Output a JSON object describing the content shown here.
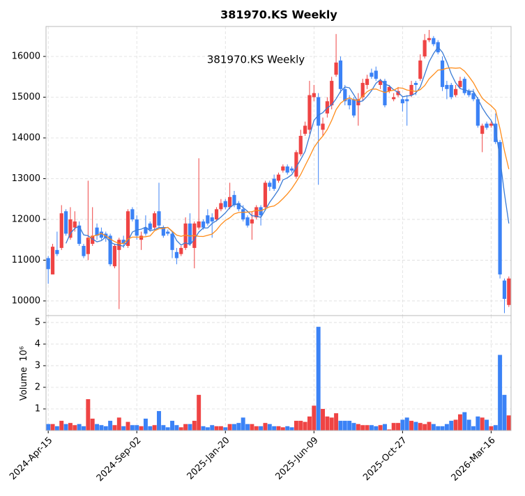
{
  "chart_data": {
    "type": "candlestick",
    "title": "381970.KS  Weekly",
    "annotation": "381970.KS  Weekly",
    "volume_label": "Volume",
    "volume_scale_label": "10⁶",
    "categories": [
      "2024-Apr-15",
      null,
      null,
      null,
      null,
      null,
      null,
      null,
      null,
      null,
      null,
      null,
      null,
      null,
      null,
      null,
      null,
      null,
      null,
      null,
      "2024-Sep-02",
      null,
      null,
      null,
      null,
      null,
      null,
      null,
      null,
      null,
      null,
      null,
      null,
      null,
      null,
      null,
      null,
      null,
      null,
      null,
      "2025-Jan-20",
      null,
      null,
      null,
      null,
      null,
      null,
      null,
      null,
      null,
      null,
      null,
      null,
      null,
      null,
      null,
      null,
      null,
      null,
      null,
      "2025-Jun-09",
      null,
      null,
      null,
      null,
      null,
      null,
      null,
      null,
      null,
      null,
      null,
      null,
      null,
      null,
      null,
      null,
      null,
      null,
      null,
      "2025-Oct-27",
      null,
      null,
      null,
      null,
      null,
      null,
      null,
      null,
      null,
      null,
      null,
      null,
      null,
      null,
      null,
      null,
      null,
      null,
      null,
      "2026-Mar-16",
      null,
      null,
      null,
      null
    ],
    "open": [
      11050,
      10650,
      11250,
      11300,
      12200,
      11550,
      11800,
      11850,
      11350,
      11150,
      11400,
      11800,
      11700,
      11650,
      11600,
      10850,
      11250,
      11500,
      11350,
      12250,
      12000,
      11500,
      11800,
      11900,
      11800,
      12200,
      11800,
      11700,
      11650,
      11200,
      11150,
      11300,
      11900,
      11300,
      11800,
      11950,
      12100,
      12050,
      12000,
      12250,
      12450,
      12300,
      12600,
      12400,
      12250,
      12050,
      11900,
      12050,
      12300,
      12300,
      12900,
      13000,
      12950,
      13200,
      13300,
      13250,
      13050,
      13600,
      14100,
      14200,
      15000,
      15000,
      14200,
      14600,
      14800,
      15550,
      15900,
      15200,
      14950,
      14950,
      14800,
      15000,
      15300,
      15600,
      15650,
      15300,
      15400,
      15150,
      14950,
      15050,
      14950,
      14950,
      15050,
      15350,
      15450,
      16000,
      16400,
      16450,
      16350,
      15900,
      15300,
      15300,
      15050,
      15250,
      15450,
      15150,
      15100,
      14950,
      14100,
      14350,
      14300,
      14350,
      13900,
      10500,
      9900
    ],
    "high": [
      11100,
      11400,
      11700,
      12350,
      12250,
      12300,
      12200,
      11950,
      11400,
      12950,
      12300,
      11900,
      11800,
      11700,
      11650,
      11400,
      11550,
      11600,
      12250,
      12300,
      12100,
      11700,
      12100,
      11950,
      12200,
      12900,
      11850,
      11750,
      11700,
      11300,
      11350,
      12050,
      12150,
      11950,
      13500,
      12000,
      12250,
      12150,
      12300,
      12500,
      12500,
      12900,
      12700,
      12450,
      12350,
      12100,
      12200,
      12350,
      12350,
      12950,
      12950,
      13100,
      13150,
      13350,
      13350,
      13300,
      13700,
      14200,
      14400,
      15400,
      15300,
      15100,
      14500,
      15000,
      15500,
      16550,
      16000,
      15300,
      15050,
      15000,
      15100,
      15450,
      15550,
      15700,
      15750,
      15450,
      15450,
      15300,
      15100,
      15250,
      15000,
      15050,
      15400,
      15400,
      16050,
      16550,
      16650,
      16500,
      16400,
      16000,
      15400,
      15350,
      15300,
      15500,
      15500,
      15200,
      15200,
      15000,
      14350,
      14400,
      14400,
      14600,
      13950,
      10550,
      10600
    ],
    "low": [
      10420,
      10650,
      11100,
      11250,
      11600,
      11500,
      11700,
      11350,
      11050,
      11000,
      11350,
      11500,
      11500,
      11450,
      10850,
      10800,
      9800,
      11300,
      11300,
      11950,
      11500,
      11250,
      11600,
      11700,
      11750,
      11800,
      11550,
      11600,
      11050,
      10900,
      11100,
      11250,
      11350,
      10800,
      11750,
      11750,
      11850,
      11550,
      11950,
      12200,
      12250,
      12250,
      12300,
      12200,
      11950,
      11800,
      11500,
      12000,
      11850,
      12250,
      12700,
      12700,
      12900,
      13150,
      13100,
      13150,
      13000,
      13550,
      14050,
      14100,
      14900,
      12850,
      14050,
      14500,
      14700,
      15500,
      15100,
      14800,
      14700,
      14500,
      14300,
      14900,
      15200,
      15450,
      15400,
      15200,
      14750,
      15100,
      14900,
      15000,
      14650,
      14300,
      15000,
      15050,
      15400,
      15950,
      16350,
      16250,
      16050,
      15150,
      14950,
      14950,
      15000,
      15200,
      15050,
      15000,
      14900,
      14250,
      13650,
      14200,
      14250,
      13850,
      10550,
      9700,
      9850
    ],
    "close": [
      10780,
      11330,
      11150,
      12150,
      11650,
      12000,
      11950,
      11400,
      11100,
      11550,
      11600,
      11600,
      11550,
      11550,
      10900,
      11350,
      11500,
      11400,
      12200,
      12000,
      11600,
      11600,
      11650,
      11750,
      12150,
      11850,
      11600,
      11650,
      11250,
      11050,
      11300,
      11900,
      11400,
      11900,
      11950,
      11800,
      11900,
      11950,
      12250,
      12400,
      12300,
      12550,
      12350,
      12250,
      12000,
      11850,
      12000,
      12300,
      12100,
      12900,
      12800,
      12750,
      13100,
      13300,
      13150,
      13200,
      13650,
      14050,
      14300,
      15050,
      15100,
      14300,
      14350,
      14900,
      15400,
      15850,
      15200,
      14900,
      14800,
      14550,
      14950,
      15350,
      15450,
      15500,
      15450,
      15400,
      14800,
      15250,
      15000,
      15150,
      14850,
      14900,
      15300,
      15300,
      15900,
      16400,
      16450,
      16300,
      16100,
      15250,
      15200,
      15000,
      15200,
      15400,
      15100,
      15050,
      14950,
      14300,
      14300,
      14250,
      14350,
      13900,
      10650,
      10050,
      10550
    ],
    "volume": [
      0.3,
      0.3,
      0.2,
      0.45,
      0.3,
      0.35,
      0.25,
      0.3,
      0.2,
      1.45,
      0.55,
      0.3,
      0.25,
      0.2,
      0.45,
      0.25,
      0.6,
      0.2,
      0.4,
      0.25,
      0.25,
      0.2,
      0.55,
      0.2,
      0.25,
      0.9,
      0.25,
      0.15,
      0.45,
      0.25,
      0.15,
      0.3,
      0.3,
      0.45,
      1.65,
      0.2,
      0.15,
      0.25,
      0.2,
      0.2,
      0.15,
      0.3,
      0.3,
      0.35,
      0.6,
      0.3,
      0.3,
      0.2,
      0.2,
      0.35,
      0.3,
      0.2,
      0.2,
      0.15,
      0.2,
      0.15,
      0.45,
      0.45,
      0.4,
      0.65,
      1.15,
      4.8,
      1.0,
      0.65,
      0.6,
      0.8,
      0.45,
      0.45,
      0.45,
      0.35,
      0.3,
      0.25,
      0.25,
      0.25,
      0.2,
      0.25,
      0.3,
      0.05,
      0.35,
      0.35,
      0.5,
      0.6,
      0.45,
      0.4,
      0.35,
      0.3,
      0.4,
      0.3,
      0.2,
      0.2,
      0.3,
      0.45,
      0.5,
      0.75,
      0.85,
      0.5,
      0.2,
      0.65,
      0.6,
      0.5,
      0.2,
      0.25,
      3.5,
      1.65,
      0.7
    ],
    "up_color": "#ef4444",
    "down_color": "#3b82f6",
    "series": [
      {
        "color": "#3a7bd5",
        "values": [
          null,
          null,
          null,
          null,
          11412,
          11656,
          11780,
          11830,
          11620,
          11600,
          11520,
          11450,
          11480,
          11570,
          11440,
          11390,
          11370,
          11340,
          11470,
          11690,
          11740,
          11760,
          11810,
          11720,
          11750,
          11800,
          11800,
          11800,
          11700,
          11480,
          11370,
          11430,
          11380,
          11510,
          11690,
          11790,
          11790,
          11900,
          11970,
          12060,
          12160,
          12290,
          12370,
          12370,
          12290,
          12200,
          12090,
          12080,
          12050,
          12230,
          12420,
          12570,
          12730,
          12970,
          13020,
          13100,
          13280,
          13470,
          13670,
          14050,
          14430,
          14560,
          14620,
          14740,
          14810,
          14960,
          15140,
          15250,
          15230,
          15060,
          14880,
          14910,
          15020,
          15160,
          15340,
          15430,
          15320,
          15280,
          15180,
          15120,
          15010,
          15030,
          15040,
          15100,
          15250,
          15560,
          15870,
          16070,
          16230,
          16100,
          15860,
          15570,
          15350,
          15210,
          15180,
          15150,
          15140,
          14960,
          14740,
          14570,
          14430,
          14220,
          13490,
          12640,
          11900
        ]
      },
      {
        "color": "#ff8c1a",
        "values": [
          null,
          null,
          null,
          null,
          null,
          null,
          null,
          null,
          null,
          11506,
          11588,
          11615,
          11655,
          11595,
          11520,
          11455,
          11410,
          11410,
          11520,
          11565,
          11565,
          11565,
          11575,
          11595,
          11720,
          11770,
          11780,
          11805,
          11710,
          11615,
          11585,
          11615,
          11590,
          11605,
          11585,
          11580,
          11610,
          11640,
          11740,
          11875,
          11975,
          12040,
          12135,
          12170,
          12175,
          12180,
          12190,
          12225,
          12210,
          12260,
          12310,
          12330,
          12405,
          12510,
          12625,
          12760,
          12925,
          13100,
          13320,
          13535,
          13765,
          13920,
          14045,
          14205,
          14430,
          14695,
          14850,
          14935,
          14985,
          14935,
          14920,
          15025,
          15135,
          15195,
          15200,
          15155,
          15115,
          15150,
          15170,
          15230,
          15220,
          15175,
          15160,
          15140,
          15185,
          15285,
          15450,
          15555,
          15665,
          15675,
          15710,
          15720,
          15710,
          15720,
          15640,
          15505,
          15355,
          15155,
          14975,
          14875,
          14790,
          14680,
          14225,
          13690,
          13235
        ]
      }
    ],
    "ylim": [
      9640,
      16735
    ],
    "yticks": [
      10000,
      11000,
      12000,
      13000,
      14000,
      15000,
      16000
    ],
    "volume_ylim": [
      0,
      5.32
    ],
    "volume_yticks": [
      1,
      2,
      3,
      4,
      5
    ],
    "grid": true
  }
}
